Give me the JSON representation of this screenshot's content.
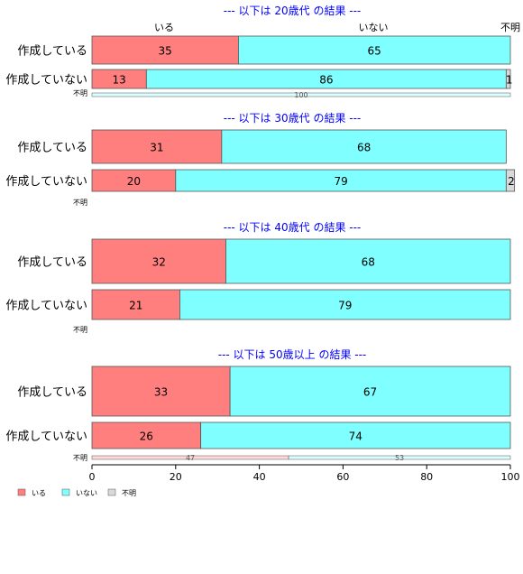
{
  "chart_data": {
    "type": "bar",
    "orientation": "horizontal",
    "stacked": true,
    "xlim": [
      0,
      100
    ],
    "xticks": [
      0,
      20,
      40,
      60,
      80,
      100
    ],
    "series": [
      {
        "name": "いる",
        "color": "#ff7f7f"
      },
      {
        "name": "いない",
        "color": "#7fffff"
      },
      {
        "name": "不明",
        "color": "#d9d9d9"
      }
    ],
    "legend": {
      "position": "bottom-left",
      "items": [
        "いる",
        "いない",
        "不明"
      ]
    },
    "column_headers": [
      "いる",
      "いない",
      "不明"
    ],
    "panels": [
      {
        "title": "--- 以下は 20歳代 の結果 ---",
        "rows": [
          {
            "label": "作成している",
            "values": [
              35,
              65,
              0
            ],
            "labels": [
              "35",
              "65",
              ""
            ]
          },
          {
            "label": "作成していない",
            "values": [
              13,
              86,
              1
            ],
            "labels": [
              "13",
              "86",
              "1"
            ]
          },
          {
            "label": "不明",
            "values": [
              0,
              100,
              0
            ],
            "labels": [
              "",
              "100",
              ""
            ],
            "small": true
          }
        ]
      },
      {
        "title": "--- 以下は 30歳代 の結果 ---",
        "rows": [
          {
            "label": "作成している",
            "values": [
              31,
              68,
              0
            ],
            "labels": [
              "31",
              "68",
              ""
            ]
          },
          {
            "label": "作成していない",
            "values": [
              20,
              79,
              2
            ],
            "labels": [
              "20",
              "79",
              "2"
            ]
          },
          {
            "label": "不明",
            "values": [
              0,
              0,
              0
            ],
            "labels": [
              "",
              "",
              ""
            ],
            "small": true
          }
        ]
      },
      {
        "title": "--- 以下は 40歳代 の結果 ---",
        "rows": [
          {
            "label": "作成している",
            "values": [
              32,
              68,
              0
            ],
            "labels": [
              "32",
              "68",
              ""
            ]
          },
          {
            "label": "作成していない",
            "values": [
              21,
              79,
              0
            ],
            "labels": [
              "21",
              "79",
              ""
            ]
          },
          {
            "label": "不明",
            "values": [
              0,
              0,
              0
            ],
            "labels": [
              "",
              "",
              ""
            ],
            "small": true
          }
        ]
      },
      {
        "title": "--- 以下は 50歳以上 の結果 ---",
        "rows": [
          {
            "label": "作成している",
            "values": [
              33,
              67,
              0
            ],
            "labels": [
              "33",
              "67",
              ""
            ]
          },
          {
            "label": "作成していない",
            "values": [
              26,
              74,
              0
            ],
            "labels": [
              "26",
              "74",
              ""
            ]
          },
          {
            "label": "不明",
            "values": [
              47,
              53,
              0
            ],
            "labels": [
              "47",
              "53",
              ""
            ],
            "small": true
          }
        ]
      }
    ]
  }
}
